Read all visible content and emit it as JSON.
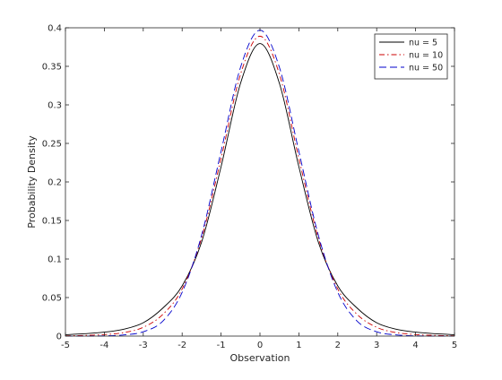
{
  "chart_data": {
    "type": "line",
    "title": "",
    "xlabel": "Observation",
    "ylabel": "Probability Density",
    "xlim": [
      -5,
      5
    ],
    "ylim": [
      0,
      0.4
    ],
    "grid": false,
    "legend_placement": "top-right",
    "x_ticks": [
      -5,
      -4,
      -3,
      -2,
      -1,
      0,
      1,
      2,
      3,
      4,
      5
    ],
    "x_tick_labels": [
      "-5",
      "-4",
      "-3",
      "-2",
      "-1",
      "0",
      "1",
      "2",
      "3",
      "4",
      "5"
    ],
    "y_ticks": [
      0,
      0.05,
      0.1,
      0.15,
      0.2,
      0.25,
      0.3,
      0.35,
      0.4
    ],
    "y_tick_labels": [
      "0",
      "0.05",
      "0.1",
      "0.15",
      "0.2",
      "0.25",
      "0.3",
      "0.35",
      "0.4"
    ],
    "x": [
      -5,
      -4.5,
      -4,
      -3.5,
      -3,
      -2.5,
      -2,
      -1.5,
      -1,
      -0.5,
      0,
      0.5,
      1,
      1.5,
      2,
      2.5,
      3,
      3.5,
      4,
      4.5,
      5
    ],
    "series": [
      {
        "name": "nu = 5",
        "color": "#000000",
        "dash": "solid",
        "values": [
          0.0018,
          0.0031,
          0.0051,
          0.0089,
          0.0173,
          0.0362,
          0.0651,
          0.122,
          0.2197,
          0.3279,
          0.3796,
          0.3279,
          0.2197,
          0.122,
          0.0651,
          0.0362,
          0.0173,
          0.0089,
          0.0051,
          0.0031,
          0.0018
        ]
      },
      {
        "name": "nu = 10",
        "color": "#cc0000",
        "dash": "dashdot",
        "values": [
          0.0004,
          0.0009,
          0.002,
          0.0045,
          0.0114,
          0.028,
          0.0611,
          0.1274,
          0.2304,
          0.3397,
          0.3891,
          0.3397,
          0.2304,
          0.1274,
          0.0611,
          0.028,
          0.0114,
          0.0045,
          0.002,
          0.0009,
          0.0004
        ]
      },
      {
        "name": "nu = 50",
        "color": "#0000cc",
        "dash": "dashed",
        "values": [
          0.0,
          0.0001,
          0.0003,
          0.0015,
          0.0056,
          0.0193,
          0.0568,
          0.1309,
          0.2396,
          0.3487,
          0.3969,
          0.3487,
          0.2396,
          0.1309,
          0.0568,
          0.0193,
          0.0056,
          0.0015,
          0.0003,
          0.0001,
          0.0
        ]
      }
    ]
  }
}
